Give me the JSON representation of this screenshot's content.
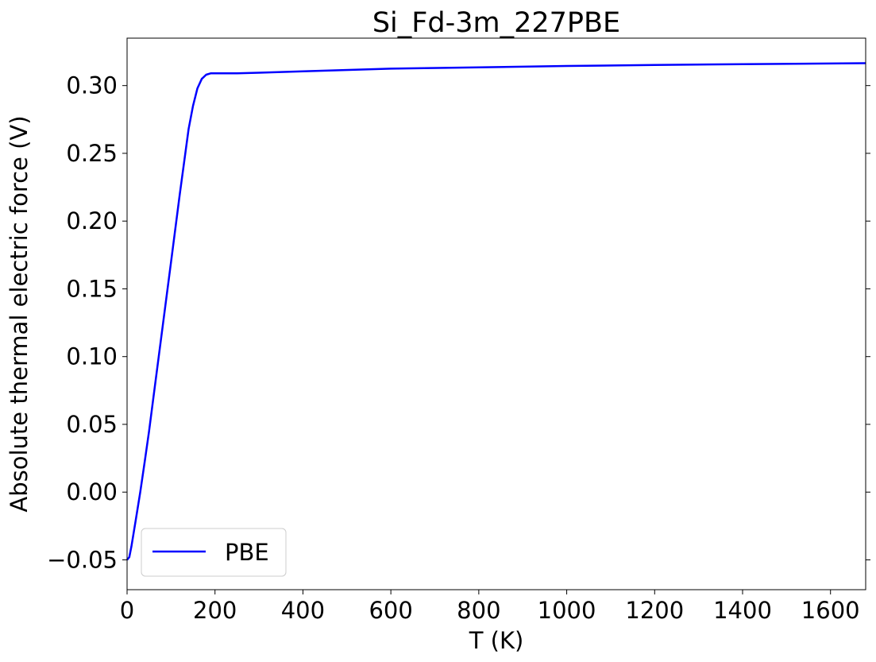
{
  "chart_data": {
    "type": "line",
    "title": "Si_Fd-3m_227PBE",
    "xlabel": "T (K)",
    "ylabel": "Absolute thermal electric force (V)",
    "xlim": [
      0,
      1680
    ],
    "ylim": [
      -0.072,
      0.335
    ],
    "xticks": [
      0,
      200,
      400,
      600,
      800,
      1000,
      1200,
      1400,
      1600
    ],
    "yticks": [
      -0.05,
      0.0,
      0.05,
      0.1,
      0.15,
      0.2,
      0.25,
      0.3
    ],
    "ytick_labels": [
      "−0.05",
      "0.00",
      "0.05",
      "0.10",
      "0.15",
      "0.20",
      "0.25",
      "0.30"
    ],
    "grid": false,
    "legend_position": "lower-left",
    "series": [
      {
        "name": "PBE",
        "color": "#0000ff",
        "x": [
          0,
          5,
          10,
          20,
          30,
          40,
          50,
          60,
          80,
          100,
          120,
          140,
          150,
          160,
          170,
          180,
          190,
          200,
          220,
          250,
          300,
          400,
          600,
          800,
          1000,
          1200,
          1400,
          1600,
          1680
        ],
        "y": [
          -0.05,
          -0.048,
          -0.04,
          -0.02,
          0.0,
          0.022,
          0.045,
          0.07,
          0.12,
          0.17,
          0.22,
          0.268,
          0.285,
          0.298,
          0.305,
          0.308,
          0.309,
          0.309,
          0.309,
          0.309,
          0.3095,
          0.3105,
          0.3125,
          0.3135,
          0.3145,
          0.3152,
          0.3158,
          0.3163,
          0.3165
        ]
      }
    ]
  }
}
